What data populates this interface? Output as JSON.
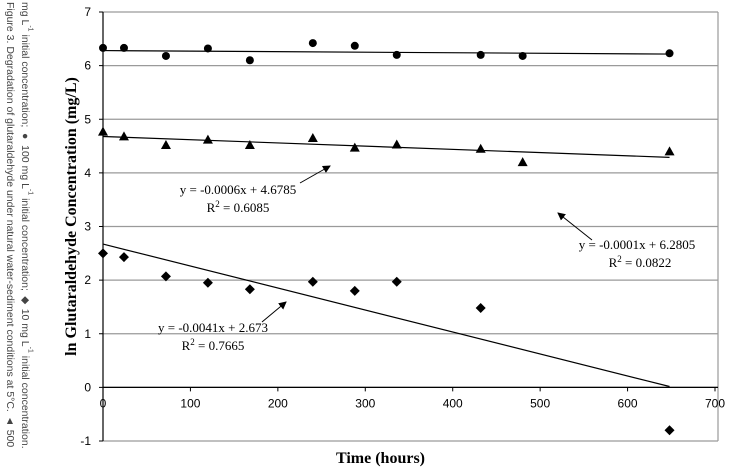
{
  "caption": {
    "line1": "Figure 3.  Degradation of glutaraldehyde under natural water-sediment conditions at 5°C. ▲ 500",
    "line2_a": "mg L",
    "line2_b": " initial concentration; ● 100 mg L",
    "line2_c": " initial concentration; ◆ 10 mg L",
    "line2_d": " initial concentration.",
    "sup": "-1"
  },
  "chart_data": {
    "type": "scatter",
    "title": "",
    "xlabel": "Time (hours)",
    "ylabel": "ln Glutaraldehyde Concentration (mg/L)",
    "xlim": [
      0,
      700
    ],
    "ylim": [
      -1,
      7
    ],
    "xticks": [
      0,
      100,
      200,
      300,
      400,
      500,
      600,
      700
    ],
    "yticks": [
      -1,
      0,
      1,
      2,
      3,
      4,
      5,
      6,
      7
    ],
    "grid": "horizontal",
    "series": [
      {
        "name": "100 mg/L",
        "marker": "circle",
        "x": [
          0,
          24,
          72,
          120,
          168,
          240,
          288,
          336,
          432,
          480,
          648
        ],
        "y": [
          6.33,
          6.33,
          6.18,
          6.32,
          6.1,
          6.42,
          6.37,
          6.2,
          6.2,
          6.18,
          6.23
        ],
        "trend": {
          "slope": -0.0001,
          "intercept": 6.2805,
          "x_range": [
            0,
            648
          ],
          "equation": "y = -0.0001x + 6.2805",
          "r2_label": "R",
          "r2_value": "= 0.0822"
        }
      },
      {
        "name": "500 mg/L",
        "marker": "triangle",
        "x": [
          0,
          24,
          72,
          120,
          168,
          240,
          288,
          336,
          432,
          480,
          648
        ],
        "y": [
          4.77,
          4.68,
          4.52,
          4.62,
          4.52,
          4.65,
          4.47,
          4.53,
          4.45,
          4.2,
          4.4
        ],
        "trend": {
          "slope": -0.0006,
          "intercept": 4.6785,
          "x_range": [
            0,
            648
          ],
          "equation": "y = -0.0006x + 4.6785",
          "r2_label": "R",
          "r2_value": "= 0.6085"
        }
      },
      {
        "name": "10 mg/L",
        "marker": "diamond",
        "x": [
          0,
          24,
          72,
          120,
          168,
          240,
          288,
          336,
          432,
          648
        ],
        "y": [
          2.5,
          2.43,
          2.07,
          1.95,
          1.83,
          1.97,
          1.8,
          1.97,
          1.48,
          -0.8
        ],
        "trend": {
          "slope": -0.0041,
          "intercept": 2.673,
          "x_range": [
            0,
            648
          ],
          "equation": "y = -0.0041x + 2.673",
          "r2_label": "R",
          "r2_value": "= 0.7665"
        }
      }
    ]
  }
}
